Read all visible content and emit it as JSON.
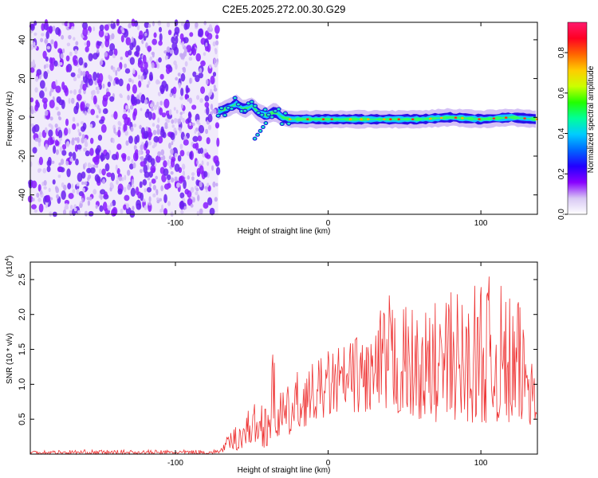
{
  "figure_title": "C2E5.2025.272.00.30.G29",
  "chart_data": [
    {
      "type": "heatmap",
      "title": "C2E5.2025.272.00.30.G29",
      "xlabel": "Height of straight line (km)",
      "ylabel": "Frequency (Hz)",
      "xlim": [
        -195,
        137
      ],
      "ylim": [
        -50,
        49
      ],
      "x_ticks": [
        -100,
        0,
        100
      ],
      "x_tick_labels": [
        "-100",
        "0",
        "100"
      ],
      "y_ticks": [
        -40,
        -20,
        0,
        20,
        40
      ],
      "y_tick_labels": [
        "-40",
        "-20",
        "0",
        "20",
        "40"
      ],
      "noise_region_x_range": [
        -195,
        -72
      ],
      "signal_track": {
        "x": [
          -72,
          -65,
          -60,
          -55,
          -50,
          -45,
          -40,
          -35,
          -30,
          -25,
          -20,
          0,
          20,
          40,
          60,
          80,
          100,
          120,
          137
        ],
        "frequency_hz": [
          3,
          5,
          7,
          4,
          6,
          2,
          1,
          3,
          0,
          -1,
          -1,
          -1,
          -1,
          -1,
          -1,
          0,
          -1,
          0,
          -1
        ]
      },
      "colorbar": {
        "label": "Normalized spectral amplitude",
        "range": [
          0.0,
          0.95
        ],
        "ticks": [
          0.0,
          0.2,
          0.4,
          0.6,
          0.8
        ],
        "tick_labels": [
          "0.0",
          "0.2",
          "0.4",
          "0.6",
          "0.8"
        ],
        "colors": [
          "#ffffff",
          "#d8c8f4",
          "#8800ff",
          "#2200ff",
          "#0066ff",
          "#00ccff",
          "#00ff99",
          "#22ff00",
          "#ccff00",
          "#ffcc00",
          "#ff6600",
          "#ff0022",
          "#ff1a6e"
        ]
      }
    },
    {
      "type": "line",
      "xlabel": "Height of straight line (km)",
      "ylabel": "SNR (10 * v/v)",
      "y_scale_label": "(x10",
      "y_scale_exponent": "4",
      "xlim": [
        -195,
        137
      ],
      "ylim": [
        0,
        2.75
      ],
      "x_ticks": [
        -100,
        0,
        100
      ],
      "x_tick_labels": [
        "-100",
        "0",
        "100"
      ],
      "y_ticks": [
        0.5,
        1.0,
        1.5,
        2.0,
        2.5
      ],
      "y_tick_labels": [
        "0.5",
        "1.0",
        "1.5",
        "2.0",
        "2.5"
      ],
      "color": "#ee3333",
      "envelope": {
        "x": [
          -195,
          -75,
          -70,
          -65,
          -60,
          -55,
          -50,
          -45,
          -40,
          -35,
          -30,
          -25,
          -20,
          -10,
          0,
          10,
          20,
          30,
          40,
          50,
          60,
          70,
          80,
          90,
          100,
          110,
          120,
          130,
          137
        ],
        "lo": [
          0.0,
          0.0,
          0.02,
          0.05,
          0.05,
          0.1,
          0.15,
          0.15,
          0.05,
          0.2,
          0.25,
          0.25,
          0.35,
          0.45,
          0.55,
          0.6,
          0.6,
          0.55,
          0.55,
          0.55,
          0.5,
          0.45,
          0.5,
          0.45,
          0.45,
          0.45,
          0.4,
          0.4,
          0.45
        ],
        "hi": [
          0.06,
          0.06,
          0.1,
          0.3,
          0.45,
          0.6,
          0.75,
          0.7,
          1.1,
          1.55,
          0.9,
          1.0,
          1.2,
          1.3,
          1.5,
          1.6,
          1.75,
          1.9,
          2.3,
          2.2,
          2.0,
          2.2,
          2.4,
          2.3,
          2.6,
          2.5,
          2.3,
          2.1,
          2.0
        ]
      }
    }
  ]
}
